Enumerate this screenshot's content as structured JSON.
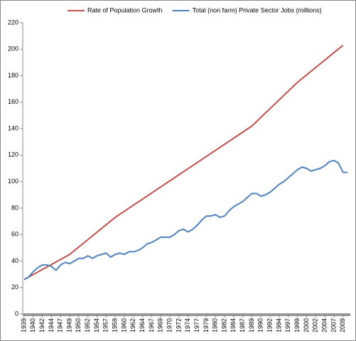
{
  "chart_data": {
    "type": "line",
    "legend": "top",
    "grid": false,
    "xlim": [
      1938.7,
      2010.6
    ],
    "ylim": [
      0,
      220
    ],
    "yticks": [
      0,
      20,
      40,
      60,
      80,
      100,
      120,
      140,
      160,
      180,
      200,
      220
    ],
    "xticks": [
      {
        "value": 1939,
        "label": "1939"
      },
      {
        "value": 1941,
        "label": "1940"
      },
      {
        "value": 1943,
        "label": "1942"
      },
      {
        "value": 1945,
        "label": "1944"
      },
      {
        "value": 1947,
        "label": "1947"
      },
      {
        "value": 1949,
        "label": "1949"
      },
      {
        "value": 1951,
        "label": "1950"
      },
      {
        "value": 1953,
        "label": "1952"
      },
      {
        "value": 1955,
        "label": "1954"
      },
      {
        "value": 1957,
        "label": "1957"
      },
      {
        "value": 1959,
        "label": "1959"
      },
      {
        "value": 1961,
        "label": "1960"
      },
      {
        "value": 1963,
        "label": "1962"
      },
      {
        "value": 1965,
        "label": "1964"
      },
      {
        "value": 1967,
        "label": "1967"
      },
      {
        "value": 1969,
        "label": "1969"
      },
      {
        "value": 1971,
        "label": "1970"
      },
      {
        "value": 1973,
        "label": "1972"
      },
      {
        "value": 1975,
        "label": "1974"
      },
      {
        "value": 1977,
        "label": "1977"
      },
      {
        "value": 1979,
        "label": "1979"
      },
      {
        "value": 1981,
        "label": "1980"
      },
      {
        "value": 1983,
        "label": "1982"
      },
      {
        "value": 1985,
        "label": "1984"
      },
      {
        "value": 1987,
        "label": "1987"
      },
      {
        "value": 1989,
        "label": "1989"
      },
      {
        "value": 1991,
        "label": "1990"
      },
      {
        "value": 1993,
        "label": "1992"
      },
      {
        "value": 1995,
        "label": "1994"
      },
      {
        "value": 1997,
        "label": "1997"
      },
      {
        "value": 1999,
        "label": "1999"
      },
      {
        "value": 2001,
        "label": "2000"
      },
      {
        "value": 2003,
        "label": "2002"
      },
      {
        "value": 2005,
        "label": "2004"
      },
      {
        "value": 2007,
        "label": "2007"
      },
      {
        "value": 2009,
        "label": "2009"
      }
    ],
    "series": [
      {
        "name": "Rate of Population Growth",
        "color": "#c0504d",
        "x": [
          1939,
          1949,
          1959,
          1989,
          1999,
          2009
        ],
        "values": [
          26,
          45,
          73,
          142,
          175,
          203
        ]
      },
      {
        "name": "Total (non farm) Private Sector Jobs (millions)",
        "color": "#4f81bd",
        "x": [
          1939,
          1940,
          1941,
          1942,
          1943,
          1944,
          1945,
          1946,
          1947,
          1948,
          1949,
          1950,
          1951,
          1952,
          1953,
          1954,
          1955,
          1956,
          1957,
          1958,
          1959,
          1960,
          1961,
          1962,
          1963,
          1964,
          1965,
          1966,
          1967,
          1968,
          1969,
          1970,
          1971,
          1972,
          1973,
          1974,
          1975,
          1976,
          1977,
          1978,
          1979,
          1980,
          1981,
          1982,
          1983,
          1984,
          1985,
          1986,
          1987,
          1988,
          1989,
          1990,
          1991,
          1992,
          1993,
          1994,
          1995,
          1996,
          1997,
          1998,
          1999,
          2000,
          2001,
          2002,
          2003,
          2004,
          2005,
          2006,
          2007,
          2008,
          2009,
          2010
        ],
        "values": [
          26,
          28,
          32,
          35,
          37,
          37,
          36,
          33,
          37,
          39,
          38,
          40,
          42,
          42,
          44,
          42,
          44,
          45,
          46,
          43,
          45,
          46,
          45,
          47,
          47,
          48,
          50,
          53,
          54,
          56,
          58,
          58,
          58,
          60,
          63,
          64,
          62,
          64,
          67,
          71,
          74,
          74,
          75,
          73,
          74,
          78,
          81,
          83,
          85,
          88,
          91,
          91,
          89,
          90,
          92,
          95,
          98,
          100,
          103,
          106,
          109,
          111,
          110,
          108,
          109,
          110,
          112,
          115,
          116,
          114,
          107,
          107
        ]
      }
    ]
  }
}
